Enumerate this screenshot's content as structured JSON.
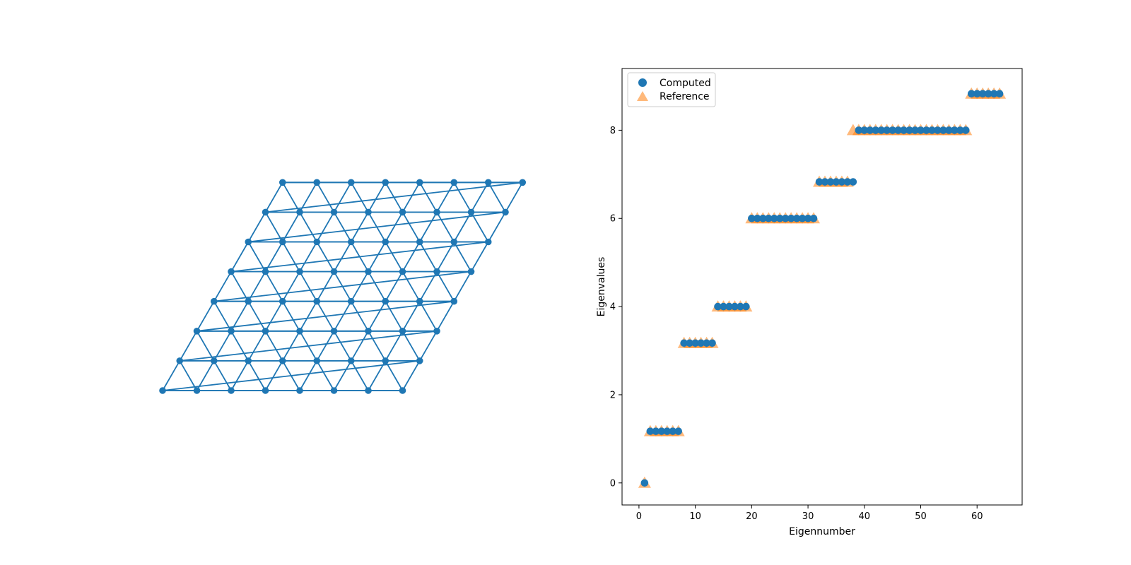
{
  "colors": {
    "computed": "#1f77b4",
    "reference": "#ff7f0e",
    "graph": "#1f77b4"
  },
  "chart_data": [
    {
      "type": "network",
      "lattice": "triangular",
      "rows": 8,
      "cols": 8
    },
    {
      "type": "scatter",
      "xlabel": "Eigennumber",
      "ylabel": "Eigenvalues",
      "xlim": [
        -3,
        68
      ],
      "ylim": [
        -0.5,
        9.4
      ],
      "xticks": [
        "0",
        "10",
        "20",
        "30",
        "40",
        "50",
        "60"
      ],
      "yticks": [
        "0",
        "2",
        "4",
        "6",
        "8"
      ],
      "legend": {
        "position": "top-left",
        "entries": [
          "Computed",
          "Reference"
        ]
      },
      "series": [
        {
          "name": "Computed",
          "marker": "circle",
          "groups": [
            {
              "from": 1,
              "to": 1,
              "value": 0
            },
            {
              "from": 2,
              "to": 7,
              "value": 1.172
            },
            {
              "from": 8,
              "to": 13,
              "value": 3.172
            },
            {
              "from": 14,
              "to": 19,
              "value": 4.0
            },
            {
              "from": 20,
              "to": 31,
              "value": 6.0
            },
            {
              "from": 32,
              "to": 38,
              "value": 6.828
            },
            {
              "from": 39,
              "to": 58,
              "value": 8.0
            },
            {
              "from": 59,
              "to": 64,
              "value": 8.828
            }
          ]
        },
        {
          "name": "Reference",
          "marker": "triangle",
          "groups": [
            {
              "from": 1,
              "to": 1,
              "value": 0
            },
            {
              "from": 2,
              "to": 7,
              "value": 1.172
            },
            {
              "from": 8,
              "to": 13,
              "value": 3.172
            },
            {
              "from": 14,
              "to": 19,
              "value": 4.0
            },
            {
              "from": 20,
              "to": 31,
              "value": 6.0
            },
            {
              "from": 32,
              "to": 37,
              "value": 6.828
            },
            {
              "from": 38,
              "to": 58,
              "value": 8.0
            },
            {
              "from": 59,
              "to": 64,
              "value": 8.828
            }
          ]
        }
      ]
    }
  ]
}
